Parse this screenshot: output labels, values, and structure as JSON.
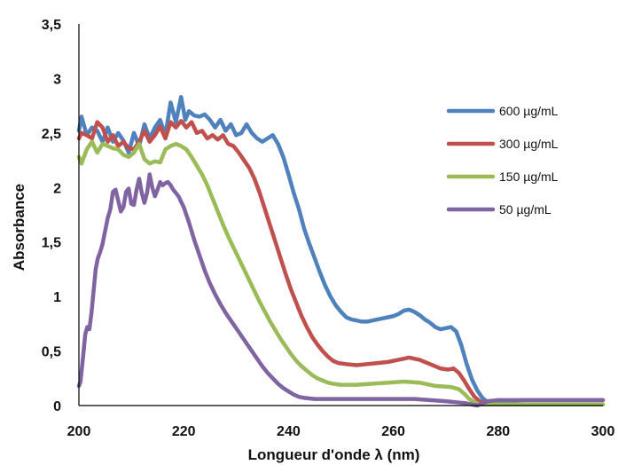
{
  "chart_data": {
    "type": "line",
    "title": "",
    "xlabel": "Longueur d'onde λ (nm)",
    "ylabel": "Absorbance",
    "xlim": [
      200,
      300
    ],
    "ylim": [
      0,
      3.5
    ],
    "x_ticks": [
      200,
      220,
      240,
      260,
      280,
      300
    ],
    "x_tick_labels": [
      "200",
      "220",
      "240",
      "260",
      "280",
      "300"
    ],
    "y_ticks": [
      0,
      0.5,
      1,
      1.5,
      2,
      2.5,
      3,
      3.5
    ],
    "y_tick_labels": [
      "0",
      "0,5",
      "1",
      "1,5",
      "2",
      "2,5",
      "3",
      "3,5"
    ],
    "grid": false,
    "legend_position": "right",
    "series": [
      {
        "name": "600 µg/mL",
        "color": "#4F81BD",
        "points": [
          [
            200,
            2.52
          ],
          [
            200.5,
            2.65
          ],
          [
            201.5,
            2.48
          ],
          [
            202.5,
            2.55
          ],
          [
            203.5,
            2.52
          ],
          [
            204.5,
            2.42
          ],
          [
            205.5,
            2.55
          ],
          [
            206.5,
            2.42
          ],
          [
            207.5,
            2.5
          ],
          [
            208.5,
            2.43
          ],
          [
            209.5,
            2.32
          ],
          [
            210.5,
            2.5
          ],
          [
            211.5,
            2.38
          ],
          [
            212.5,
            2.58
          ],
          [
            213.5,
            2.45
          ],
          [
            214.5,
            2.55
          ],
          [
            215.5,
            2.62
          ],
          [
            216.5,
            2.48
          ],
          [
            217.5,
            2.78
          ],
          [
            218.5,
            2.6
          ],
          [
            219.5,
            2.83
          ],
          [
            220.3,
            2.62
          ],
          [
            221,
            2.7
          ],
          [
            222,
            2.66
          ],
          [
            223,
            2.65
          ],
          [
            224,
            2.67
          ],
          [
            225,
            2.62
          ],
          [
            226,
            2.55
          ],
          [
            227,
            2.62
          ],
          [
            228,
            2.52
          ],
          [
            229,
            2.58
          ],
          [
            230,
            2.48
          ],
          [
            231,
            2.5
          ],
          [
            232,
            2.58
          ],
          [
            233,
            2.5
          ],
          [
            234,
            2.45
          ],
          [
            235,
            2.42
          ],
          [
            236,
            2.45
          ],
          [
            237,
            2.48
          ],
          [
            238,
            2.4
          ],
          [
            239,
            2.28
          ],
          [
            240,
            2.12
          ],
          [
            241,
            1.95
          ],
          [
            242,
            1.8
          ],
          [
            243,
            1.62
          ],
          [
            244,
            1.48
          ],
          [
            245,
            1.35
          ],
          [
            246,
            1.22
          ],
          [
            247,
            1.1
          ],
          [
            248,
            1.0
          ],
          [
            249,
            0.92
          ],
          [
            250,
            0.86
          ],
          [
            251,
            0.81
          ],
          [
            252,
            0.79
          ],
          [
            253,
            0.78
          ],
          [
            254,
            0.77
          ],
          [
            255,
            0.77
          ],
          [
            256,
            0.78
          ],
          [
            257,
            0.79
          ],
          [
            258,
            0.8
          ],
          [
            259,
            0.81
          ],
          [
            260,
            0.82
          ],
          [
            261,
            0.84
          ],
          [
            262,
            0.87
          ],
          [
            263,
            0.88
          ],
          [
            264,
            0.86
          ],
          [
            265,
            0.83
          ],
          [
            266,
            0.79
          ],
          [
            267,
            0.76
          ],
          [
            268,
            0.72
          ],
          [
            269,
            0.7
          ],
          [
            270,
            0.71
          ],
          [
            271,
            0.72
          ],
          [
            272,
            0.68
          ],
          [
            273,
            0.55
          ],
          [
            274,
            0.38
          ],
          [
            275,
            0.24
          ],
          [
            276,
            0.14
          ],
          [
            277,
            0.07
          ],
          [
            278,
            0.03
          ],
          [
            279,
            0.03
          ],
          [
            280,
            0.04
          ],
          [
            285,
            0.05
          ],
          [
            290,
            0.05
          ],
          [
            300,
            0.05
          ]
        ]
      },
      {
        "name": "300 µg/mL",
        "color": "#C0504D",
        "points": [
          [
            200,
            2.45
          ],
          [
            200.5,
            2.5
          ],
          [
            201.5,
            2.48
          ],
          [
            202.5,
            2.45
          ],
          [
            203.5,
            2.6
          ],
          [
            204.5,
            2.55
          ],
          [
            205.5,
            2.42
          ],
          [
            206.5,
            2.48
          ],
          [
            207.5,
            2.38
          ],
          [
            208.5,
            2.42
          ],
          [
            209.5,
            2.36
          ],
          [
            210.5,
            2.35
          ],
          [
            211.5,
            2.42
          ],
          [
            212.5,
            2.52
          ],
          [
            213.5,
            2.42
          ],
          [
            214.5,
            2.48
          ],
          [
            215.5,
            2.56
          ],
          [
            216.5,
            2.45
          ],
          [
            217.5,
            2.6
          ],
          [
            218.5,
            2.55
          ],
          [
            219.5,
            2.61
          ],
          [
            220.5,
            2.55
          ],
          [
            221.5,
            2.6
          ],
          [
            222.5,
            2.5
          ],
          [
            223.5,
            2.52
          ],
          [
            224.5,
            2.45
          ],
          [
            225.5,
            2.48
          ],
          [
            226.5,
            2.44
          ],
          [
            227.5,
            2.48
          ],
          [
            228.5,
            2.4
          ],
          [
            229.5,
            2.38
          ],
          [
            230.5,
            2.32
          ],
          [
            231.5,
            2.25
          ],
          [
            232.5,
            2.18
          ],
          [
            233.5,
            2.08
          ],
          [
            234.5,
            1.95
          ],
          [
            235.5,
            1.8
          ],
          [
            236.5,
            1.65
          ],
          [
            237.5,
            1.5
          ],
          [
            238.5,
            1.35
          ],
          [
            239.5,
            1.2
          ],
          [
            240.5,
            1.06
          ],
          [
            241.5,
            0.94
          ],
          [
            242.5,
            0.82
          ],
          [
            243.5,
            0.72
          ],
          [
            244.5,
            0.63
          ],
          [
            245.5,
            0.56
          ],
          [
            246.5,
            0.5
          ],
          [
            247.5,
            0.45
          ],
          [
            248.5,
            0.41
          ],
          [
            249.5,
            0.39
          ],
          [
            251,
            0.38
          ],
          [
            253,
            0.37
          ],
          [
            255,
            0.38
          ],
          [
            257,
            0.39
          ],
          [
            259,
            0.4
          ],
          [
            261,
            0.42
          ],
          [
            263,
            0.44
          ],
          [
            265,
            0.42
          ],
          [
            267,
            0.38
          ],
          [
            269,
            0.34
          ],
          [
            270.5,
            0.33
          ],
          [
            271.5,
            0.34
          ],
          [
            272.5,
            0.3
          ],
          [
            273.5,
            0.23
          ],
          [
            274.5,
            0.15
          ],
          [
            275.5,
            0.08
          ],
          [
            276.5,
            0.04
          ],
          [
            277.5,
            0.02
          ],
          [
            278.5,
            0.01
          ],
          [
            280,
            0.01
          ],
          [
            290,
            0.01
          ],
          [
            300,
            0.01
          ]
        ]
      },
      {
        "name": "150 µg/mL",
        "color": "#9BBB59",
        "points": [
          [
            200,
            2.28
          ],
          [
            200.5,
            2.22
          ],
          [
            201.5,
            2.35
          ],
          [
            202.5,
            2.42
          ],
          [
            203.5,
            2.32
          ],
          [
            204.5,
            2.4
          ],
          [
            205.5,
            2.38
          ],
          [
            206.5,
            2.36
          ],
          [
            207.5,
            2.35
          ],
          [
            208.5,
            2.3
          ],
          [
            209.5,
            2.28
          ],
          [
            210.5,
            2.32
          ],
          [
            211.5,
            2.4
          ],
          [
            212.5,
            2.26
          ],
          [
            213.5,
            2.22
          ],
          [
            214.5,
            2.24
          ],
          [
            215.5,
            2.23
          ],
          [
            216.5,
            2.35
          ],
          [
            217.5,
            2.38
          ],
          [
            218.5,
            2.4
          ],
          [
            219.5,
            2.38
          ],
          [
            220.5,
            2.35
          ],
          [
            221.5,
            2.28
          ],
          [
            222.5,
            2.2
          ],
          [
            223.5,
            2.12
          ],
          [
            224.5,
            2.02
          ],
          [
            225.5,
            1.9
          ],
          [
            226.5,
            1.78
          ],
          [
            227.5,
            1.66
          ],
          [
            228.5,
            1.55
          ],
          [
            229.5,
            1.45
          ],
          [
            230.5,
            1.35
          ],
          [
            231.5,
            1.25
          ],
          [
            232.5,
            1.15
          ],
          [
            233.5,
            1.05
          ],
          [
            234.5,
            0.95
          ],
          [
            235.5,
            0.86
          ],
          [
            236.5,
            0.77
          ],
          [
            237.5,
            0.69
          ],
          [
            238.5,
            0.61
          ],
          [
            239.5,
            0.54
          ],
          [
            240.5,
            0.47
          ],
          [
            241.5,
            0.41
          ],
          [
            242.5,
            0.36
          ],
          [
            243.5,
            0.32
          ],
          [
            244.5,
            0.28
          ],
          [
            245.5,
            0.25
          ],
          [
            246.5,
            0.23
          ],
          [
            247.5,
            0.21
          ],
          [
            248.5,
            0.2
          ],
          [
            250,
            0.19
          ],
          [
            253,
            0.19
          ],
          [
            256,
            0.2
          ],
          [
            259,
            0.21
          ],
          [
            262,
            0.22
          ],
          [
            265,
            0.21
          ],
          [
            268,
            0.18
          ],
          [
            271,
            0.17
          ],
          [
            272.5,
            0.15
          ],
          [
            273.5,
            0.11
          ],
          [
            274.5,
            0.06
          ],
          [
            275.5,
            0.03
          ],
          [
            276.5,
            0.01
          ],
          [
            278,
            0.01
          ],
          [
            290,
            0.01
          ],
          [
            300,
            0.01
          ]
        ]
      },
      {
        "name": "50 µg/mL",
        "color": "#8064A2",
        "points": [
          [
            200,
            0.18
          ],
          [
            200.3,
            0.22
          ],
          [
            200.8,
            0.45
          ],
          [
            201.2,
            0.65
          ],
          [
            201.6,
            0.72
          ],
          [
            202,
            0.7
          ],
          [
            202.4,
            0.85
          ],
          [
            202.8,
            1.05
          ],
          [
            203.2,
            1.25
          ],
          [
            203.6,
            1.35
          ],
          [
            204,
            1.4
          ],
          [
            204.5,
            1.48
          ],
          [
            205,
            1.6
          ],
          [
            205.5,
            1.72
          ],
          [
            206,
            1.8
          ],
          [
            206.5,
            1.96
          ],
          [
            207,
            1.98
          ],
          [
            207.5,
            1.88
          ],
          [
            208,
            1.78
          ],
          [
            208.5,
            1.82
          ],
          [
            209,
            1.96
          ],
          [
            209.5,
            1.99
          ],
          [
            210,
            1.85
          ],
          [
            210.5,
            1.84
          ],
          [
            211,
            1.98
          ],
          [
            211.5,
            2.08
          ],
          [
            212,
            1.95
          ],
          [
            212.5,
            1.86
          ],
          [
            213,
            1.95
          ],
          [
            213.5,
            2.12
          ],
          [
            214,
            2.0
          ],
          [
            214.5,
            1.92
          ],
          [
            215,
            1.98
          ],
          [
            215.5,
            2.05
          ],
          [
            216,
            2.02
          ],
          [
            216.5,
            2.04
          ],
          [
            217,
            2.05
          ],
          [
            217.5,
            2.02
          ],
          [
            218,
            1.98
          ],
          [
            219,
            1.92
          ],
          [
            220,
            1.82
          ],
          [
            221,
            1.68
          ],
          [
            222,
            1.52
          ],
          [
            223,
            1.38
          ],
          [
            224,
            1.24
          ],
          [
            225,
            1.12
          ],
          [
            226,
            1.02
          ],
          [
            227,
            0.93
          ],
          [
            228,
            0.85
          ],
          [
            229,
            0.78
          ],
          [
            230,
            0.71
          ],
          [
            231,
            0.64
          ],
          [
            232,
            0.57
          ],
          [
            233,
            0.5
          ],
          [
            234,
            0.43
          ],
          [
            235,
            0.36
          ],
          [
            236,
            0.3
          ],
          [
            237,
            0.25
          ],
          [
            238,
            0.2
          ],
          [
            239,
            0.16
          ],
          [
            240,
            0.13
          ],
          [
            241,
            0.1
          ],
          [
            242,
            0.08
          ],
          [
            243,
            0.07
          ],
          [
            245,
            0.06
          ],
          [
            248,
            0.06
          ],
          [
            252,
            0.06
          ],
          [
            256,
            0.06
          ],
          [
            260,
            0.06
          ],
          [
            264,
            0.06
          ],
          [
            267,
            0.05
          ],
          [
            270,
            0.04
          ],
          [
            272,
            0.03
          ],
          [
            274,
            0.02
          ],
          [
            275,
            0.01
          ],
          [
            276,
            0.0
          ],
          [
            277,
            0.02
          ],
          [
            278,
            0.04
          ],
          [
            280,
            0.05
          ],
          [
            290,
            0.05
          ],
          [
            300,
            0.05
          ]
        ]
      }
    ]
  }
}
